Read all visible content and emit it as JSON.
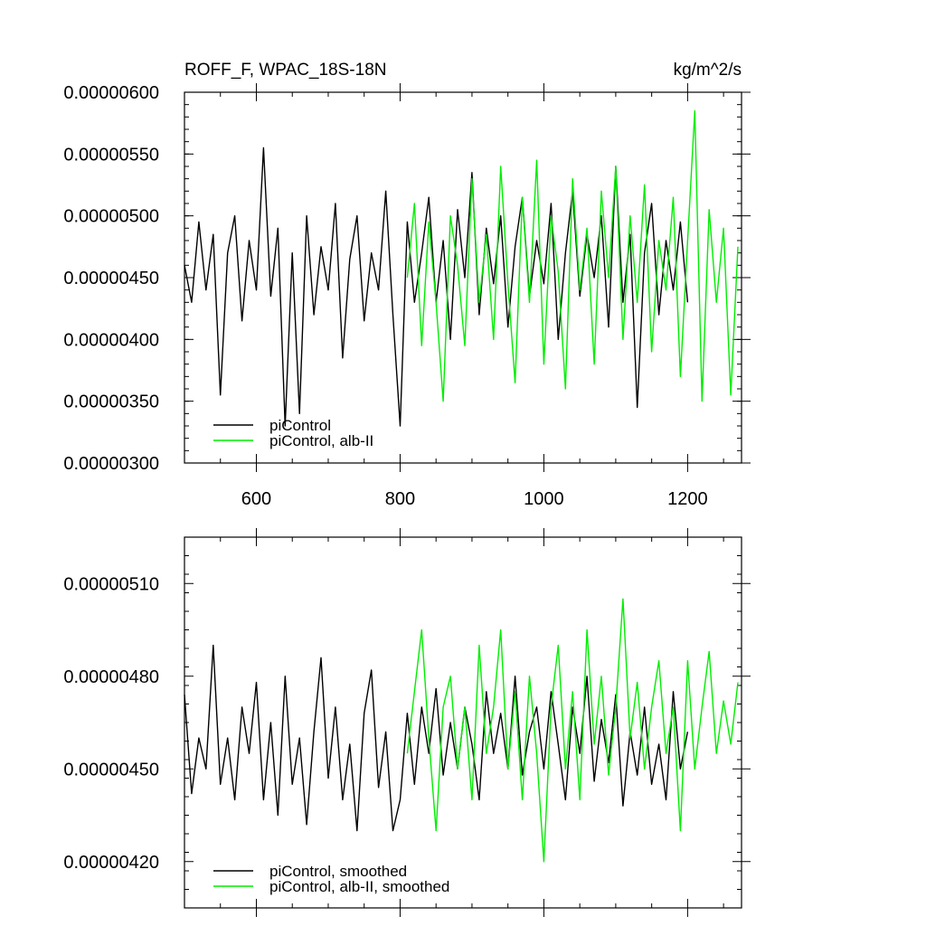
{
  "chart_data": [
    {
      "type": "line",
      "title": "ROFF_F, WPAC_18S-18N",
      "units": "kg/m^2/s",
      "xlim": [
        500,
        1275
      ],
      "ylim": [
        3e-06,
        6e-06
      ],
      "xticks": [
        600,
        800,
        1000,
        1200
      ],
      "xtick_labels": [
        "600",
        "800",
        "1000",
        "1200"
      ],
      "yticks": [
        3e-06,
        3.5e-06,
        4e-06,
        4.5e-06,
        5e-06,
        5.5e-06,
        6e-06
      ],
      "ytick_labels": [
        "0.00000300",
        "0.00000350",
        "0.00000400",
        "0.00000450",
        "0.00000500",
        "0.00000550",
        "0.00000600"
      ],
      "legend_position": "bottom-left",
      "series": [
        {
          "name": "piControl",
          "color": "#000000",
          "x": [
            500,
            510,
            520,
            530,
            540,
            550,
            560,
            570,
            580,
            590,
            600,
            610,
            620,
            630,
            640,
            650,
            660,
            670,
            680,
            690,
            700,
            710,
            720,
            730,
            740,
            750,
            760,
            770,
            780,
            790,
            800,
            810,
            820,
            830,
            840,
            850,
            860,
            870,
            880,
            890,
            900,
            910,
            920,
            930,
            940,
            950,
            960,
            970,
            980,
            990,
            1000,
            1010,
            1020,
            1030,
            1040,
            1050,
            1060,
            1070,
            1080,
            1090,
            1100,
            1110,
            1120,
            1130,
            1140,
            1150,
            1160,
            1170,
            1180,
            1190,
            1200
          ],
          "values": [
            4.6e-06,
            4.3e-06,
            4.95e-06,
            4.4e-06,
            4.85e-06,
            3.55e-06,
            4.7e-06,
            5e-06,
            4.15e-06,
            4.8e-06,
            4.4e-06,
            5.55e-06,
            4.35e-06,
            4.9e-06,
            3.3e-06,
            4.7e-06,
            3.4e-06,
            5e-06,
            4.2e-06,
            4.75e-06,
            4.4e-06,
            5.1e-06,
            3.85e-06,
            4.65e-06,
            5e-06,
            4.15e-06,
            4.7e-06,
            4.4e-06,
            5.2e-06,
            4.2e-06,
            3.3e-06,
            4.95e-06,
            4.3e-06,
            4.7e-06,
            5.15e-06,
            4.3e-06,
            4.8e-06,
            4e-06,
            5.05e-06,
            4.5e-06,
            5.35e-06,
            4.2e-06,
            4.9e-06,
            4.45e-06,
            5e-06,
            4.1e-06,
            4.75e-06,
            5.15e-06,
            4.35e-06,
            4.8e-06,
            4.45e-06,
            5.1e-06,
            4e-06,
            4.7e-06,
            5.2e-06,
            4.35e-06,
            4.85e-06,
            4.5e-06,
            5e-06,
            4.1e-06,
            5.4e-06,
            4.3e-06,
            4.85e-06,
            3.45e-06,
            4.7e-06,
            5.1e-06,
            4.2e-06,
            4.8e-06,
            4.4e-06,
            4.95e-06,
            4.3e-06
          ]
        },
        {
          "name": "piControl, alb-II",
          "color": "#00ee00",
          "x": [
            810,
            820,
            830,
            840,
            850,
            860,
            870,
            880,
            890,
            900,
            910,
            920,
            930,
            940,
            950,
            960,
            970,
            980,
            990,
            1000,
            1010,
            1020,
            1030,
            1040,
            1050,
            1060,
            1070,
            1080,
            1090,
            1100,
            1110,
            1120,
            1130,
            1140,
            1150,
            1160,
            1170,
            1180,
            1190,
            1200,
            1210,
            1220,
            1230,
            1240,
            1250,
            1260,
            1270
          ],
          "values": [
            4.5e-06,
            5.1e-06,
            3.95e-06,
            4.95e-06,
            4.3e-06,
            3.5e-06,
            5e-06,
            4.6e-06,
            3.95e-06,
            5.3e-06,
            4.3e-06,
            4.85e-06,
            4e-06,
            5.4e-06,
            4.45e-06,
            3.65e-06,
            5.15e-06,
            4.3e-06,
            5.45e-06,
            3.8e-06,
            5e-06,
            4.55e-06,
            3.6e-06,
            5.3e-06,
            4.4e-06,
            4.9e-06,
            3.8e-06,
            5.2e-06,
            4.5e-06,
            5.4e-06,
            4e-06,
            5e-06,
            4.3e-06,
            5.25e-06,
            3.9e-06,
            4.8e-06,
            4.4e-06,
            5.15e-06,
            3.7e-06,
            4.8e-06,
            5.85e-06,
            3.5e-06,
            5.05e-06,
            4.3e-06,
            4.9e-06,
            3.55e-06,
            4.75e-06
          ]
        }
      ]
    },
    {
      "type": "line",
      "title": "",
      "xlim": [
        500,
        1275
      ],
      "ylim": [
        4.05e-06,
        5.25e-06
      ],
      "xticks": [
        600,
        800,
        1000,
        1200
      ],
      "yticks": [
        4.2e-06,
        4.5e-06,
        4.8e-06,
        5.1e-06
      ],
      "ytick_labels": [
        "0.00000420",
        "0.00000450",
        "0.00000480",
        "0.00000510"
      ],
      "legend_position": "bottom-left",
      "series": [
        {
          "name": "piControl, smoothed",
          "color": "#000000",
          "x": [
            500,
            510,
            520,
            530,
            540,
            550,
            560,
            570,
            580,
            590,
            600,
            610,
            620,
            630,
            640,
            650,
            660,
            670,
            680,
            690,
            700,
            710,
            720,
            730,
            740,
            750,
            760,
            770,
            780,
            790,
            800,
            810,
            820,
            830,
            840,
            850,
            860,
            870,
            880,
            890,
            900,
            910,
            920,
            930,
            940,
            950,
            960,
            970,
            980,
            990,
            1000,
            1010,
            1020,
            1030,
            1040,
            1050,
            1060,
            1070,
            1080,
            1090,
            1100,
            1110,
            1120,
            1130,
            1140,
            1150,
            1160,
            1170,
            1180,
            1190,
            1200
          ],
          "values": [
            4.74e-06,
            4.42e-06,
            4.6e-06,
            4.5e-06,
            4.9e-06,
            4.45e-06,
            4.6e-06,
            4.4e-06,
            4.7e-06,
            4.55e-06,
            4.78e-06,
            4.4e-06,
            4.65e-06,
            4.35e-06,
            4.8e-06,
            4.45e-06,
            4.6e-06,
            4.32e-06,
            4.62e-06,
            4.86e-06,
            4.47e-06,
            4.7e-06,
            4.4e-06,
            4.58e-06,
            4.3e-06,
            4.68e-06,
            4.82e-06,
            4.44e-06,
            4.62e-06,
            4.3e-06,
            4.4e-06,
            4.68e-06,
            4.45e-06,
            4.7e-06,
            4.55e-06,
            4.76e-06,
            4.48e-06,
            4.65e-06,
            4.5e-06,
            4.7e-06,
            4.58e-06,
            4.4e-06,
            4.75e-06,
            4.55e-06,
            4.68e-06,
            4.5e-06,
            4.8e-06,
            4.48e-06,
            4.62e-06,
            4.7e-06,
            4.5e-06,
            4.75e-06,
            4.58e-06,
            4.4e-06,
            4.7e-06,
            4.55e-06,
            4.8e-06,
            4.46e-06,
            4.66e-06,
            4.52e-06,
            4.74e-06,
            4.38e-06,
            4.62e-06,
            4.48e-06,
            4.7e-06,
            4.45e-06,
            4.58e-06,
            4.4e-06,
            4.75e-06,
            4.5e-06,
            4.62e-06
          ]
        },
        {
          "name": "piControl, alb-II, smoothed",
          "color": "#00ee00",
          "x": [
            810,
            820,
            830,
            840,
            850,
            860,
            870,
            880,
            890,
            900,
            910,
            920,
            930,
            940,
            950,
            960,
            970,
            980,
            990,
            1000,
            1010,
            1020,
            1030,
            1040,
            1050,
            1060,
            1070,
            1080,
            1090,
            1100,
            1110,
            1120,
            1130,
            1140,
            1150,
            1160,
            1170,
            1180,
            1190,
            1200,
            1210,
            1220,
            1230,
            1240,
            1250,
            1260,
            1270
          ],
          "values": [
            4.55e-06,
            4.75e-06,
            4.95e-06,
            4.6e-06,
            4.3e-06,
            4.7e-06,
            4.8e-06,
            4.5e-06,
            4.7e-06,
            4.4e-06,
            4.9e-06,
            4.55e-06,
            4.7e-06,
            4.95e-06,
            4.5e-06,
            4.75e-06,
            4.4e-06,
            4.8e-06,
            4.55e-06,
            4.2e-06,
            4.7e-06,
            4.9e-06,
            4.5e-06,
            4.75e-06,
            4.4e-06,
            4.95e-06,
            4.58e-06,
            4.8e-06,
            4.48e-06,
            4.7e-06,
            5.05e-06,
            4.6e-06,
            4.78e-06,
            4.5e-06,
            4.7e-06,
            4.85e-06,
            4.55e-06,
            4.7e-06,
            4.3e-06,
            4.85e-06,
            4.5e-06,
            4.7e-06,
            4.88e-06,
            4.55e-06,
            4.72e-06,
            4.58e-06,
            4.78e-06
          ]
        }
      ]
    }
  ]
}
